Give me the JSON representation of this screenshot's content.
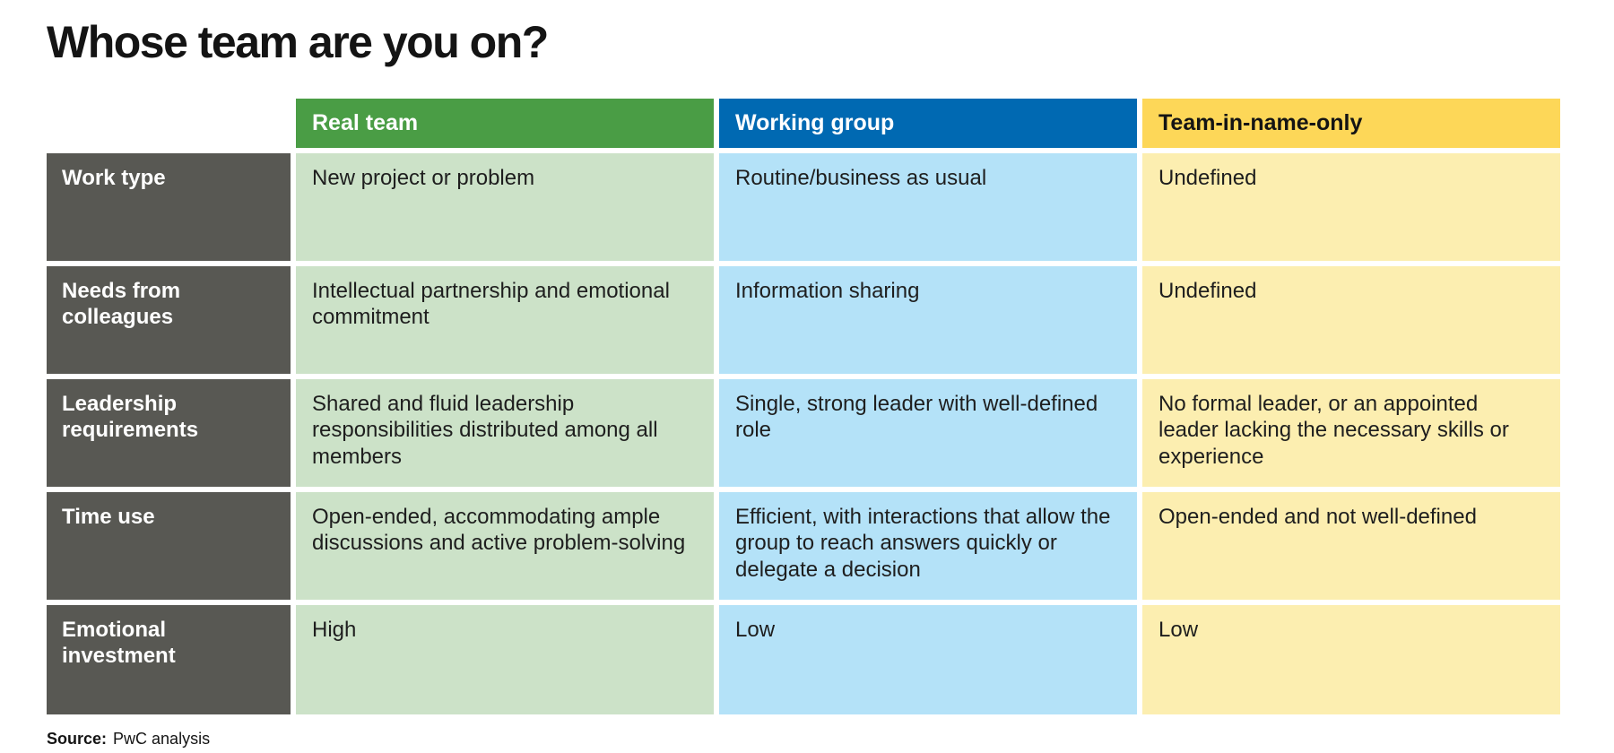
{
  "page": {
    "title": "Whose team are you on?",
    "source_label": "Source:",
    "source_text": "PwC analysis"
  },
  "colors": {
    "real_team_header": "#4a9d45",
    "working_group_header": "#0069b2",
    "team_in_name_only_header": "#fdd758",
    "real_team_cell": "#cce2c8",
    "working_group_cell": "#b4e2f8",
    "team_in_name_only_cell": "#fceeb0",
    "row_label_bg": "#585853"
  },
  "table": {
    "columns": [
      {
        "label": "Real team"
      },
      {
        "label": "Working group"
      },
      {
        "label": "Team-in-name-only"
      }
    ],
    "rows": [
      {
        "label": "Work type",
        "real_team": "New project or problem",
        "working_group": "Routine/business as usual",
        "team_in_name_only": "Undefined"
      },
      {
        "label": "Needs from colleagues",
        "real_team": "Intellectual partnership and emotional commitment",
        "working_group": "Information sharing",
        "team_in_name_only": "Undefined"
      },
      {
        "label": "Leadership requirements",
        "real_team": "Shared and fluid leadership responsibilities distributed among all members",
        "working_group": "Single, strong leader with well-defined role",
        "team_in_name_only": "No formal leader, or an appointed leader lacking the necessary skills or experience"
      },
      {
        "label": "Time use",
        "real_team": "Open-ended, accommodating ample discussions and active problem-solving",
        "working_group": "Efficient, with interactions that allow the group to reach answers quickly or delegate a decision",
        "team_in_name_only": "Open-ended and not well-defined"
      },
      {
        "label": "Emotional investment",
        "real_team": "High",
        "working_group": "Low",
        "team_in_name_only": "Low"
      }
    ]
  }
}
